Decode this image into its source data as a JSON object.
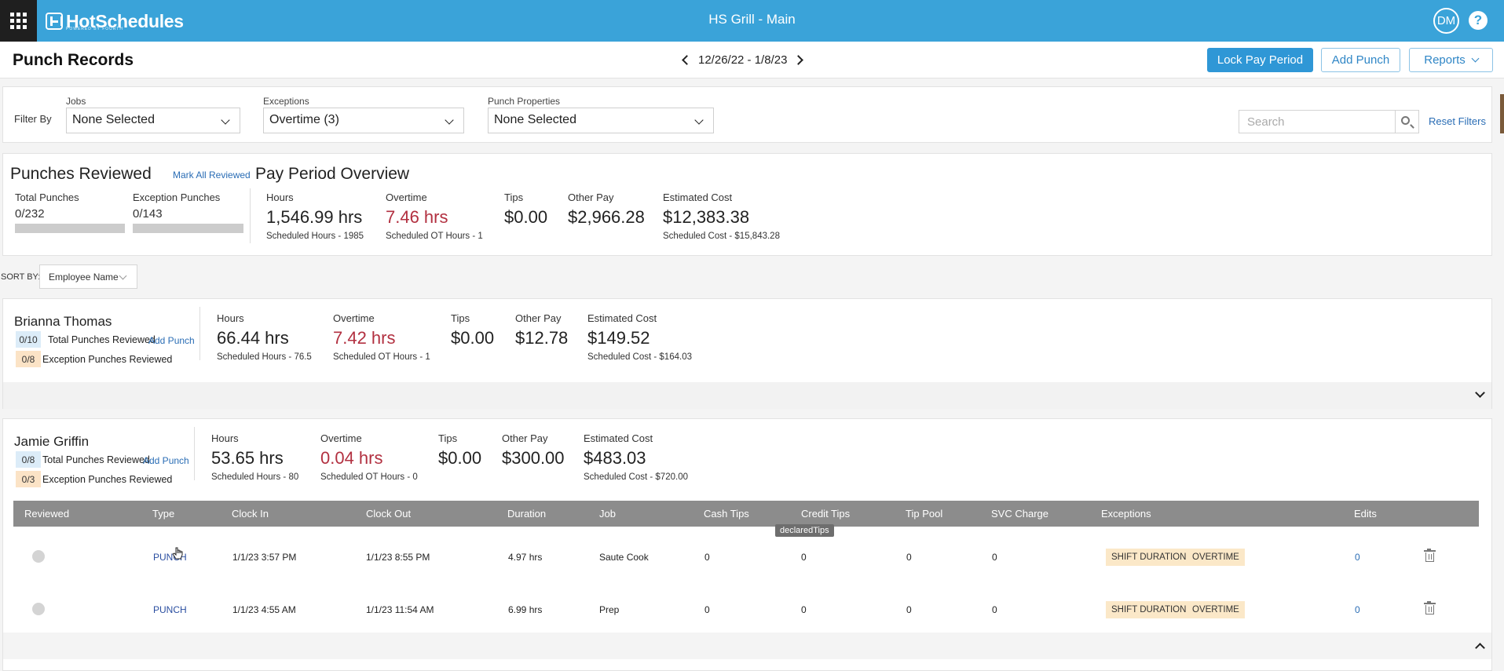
{
  "topbar": {
    "logo_text": "HotSchedules",
    "logo_sub": "POWERED BY FOURTH",
    "location": "HS Grill - Main",
    "avatar": "DM",
    "help": "?",
    "color": "#3aa3d9"
  },
  "header": {
    "title": "Punch Records",
    "date_range": "12/26/22 - 1/8/23",
    "lock_label": "Lock Pay Period",
    "add_punch_label": "Add Punch",
    "reports_label": "Reports"
  },
  "filters": {
    "filter_by": "Filter By",
    "jobs_label": "Jobs",
    "jobs_value": "None Selected",
    "exceptions_label": "Exceptions",
    "exceptions_value": "Overtime (3)",
    "props_label": "Punch Properties",
    "props_value": "None Selected",
    "search_placeholder": "Search",
    "reset_label": "Reset Filters"
  },
  "overview": {
    "reviewed_title": "Punches Reviewed",
    "mark_all": "Mark All Reviewed",
    "total_label": "Total Punches",
    "total_value": "0/232",
    "total_progress": 0,
    "exception_label": "Exception Punches",
    "exception_value": "0/143",
    "exception_progress": 0,
    "ppo_title": "Pay Period Overview",
    "hours_label": "Hours",
    "hours_value": "1,546.99 hrs",
    "hours_sub": "Scheduled Hours - 1985",
    "ot_label": "Overtime",
    "ot_value": "7.46 hrs",
    "ot_sub": "Scheduled OT Hours - 1",
    "tips_label": "Tips",
    "tips_value": "$0.00",
    "other_label": "Other Pay",
    "other_value": "$2,966.28",
    "cost_label": "Estimated Cost",
    "cost_value": "$12,383.38",
    "cost_sub": "Scheduled Cost - $15,843.28"
  },
  "sort": {
    "label": "SORT BY:",
    "value": "Employee Name"
  },
  "employees": [
    {
      "name": "Brianna Thomas",
      "total_badge": "0/10",
      "total_text": "Total Punches Reviewed",
      "add_punch": "Add Punch",
      "exc_badge": "0/8",
      "exc_text": "Exception Punches Reviewed",
      "hours_label": "Hours",
      "hours_value": "66.44 hrs",
      "hours_sub": "Scheduled Hours - 76.5",
      "ot_label": "Overtime",
      "ot_value": "7.42 hrs",
      "ot_sub": "Scheduled OT Hours - 1",
      "tips_label": "Tips",
      "tips_value": "$0.00",
      "other_label": "Other Pay",
      "other_value": "$12.78",
      "cost_label": "Estimated Cost",
      "cost_value": "$149.52",
      "cost_sub": "Scheduled Cost - $164.03"
    },
    {
      "name": "Jamie Griffin",
      "total_badge": "0/8",
      "total_text": "Total Punches Reviewed",
      "add_punch": "Add Punch",
      "exc_badge": "0/3",
      "exc_text": "Exception Punches Reviewed",
      "hours_label": "Hours",
      "hours_value": "53.65 hrs",
      "hours_sub": "Scheduled Hours - 80",
      "ot_label": "Overtime",
      "ot_value": "0.04 hrs",
      "ot_sub": "Scheduled OT Hours - 0",
      "tips_label": "Tips",
      "tips_value": "$0.00",
      "other_label": "Other Pay",
      "other_value": "$300.00",
      "cost_label": "Estimated Cost",
      "cost_value": "$483.03",
      "cost_sub": "Scheduled Cost - $720.00"
    }
  ],
  "table": {
    "headers": [
      "Reviewed",
      "Type",
      "Clock In",
      "Clock Out",
      "Duration",
      "Job",
      "Cash Tips",
      "Credit Tips",
      "Tip Pool",
      "SVC Charge",
      "Exceptions",
      "Edits"
    ],
    "tooltip": "declaredTips",
    "rows": [
      {
        "type": "PUNCH",
        "clock_in": "1/1/23  3:57 PM",
        "clock_out": "1/1/23  8:55 PM",
        "duration": "4.97 hrs",
        "job": "Saute Cook",
        "cash_tips": "0",
        "credit_tips": "0",
        "tip_pool": "0",
        "svc": "0",
        "exc1": "SHIFT DURATION",
        "exc2": "OVERTIME",
        "edits": "0"
      },
      {
        "type": "PUNCH",
        "clock_in": "1/1/23  4:55 AM",
        "clock_out": "1/1/23  11:54 AM",
        "duration": "6.99 hrs",
        "job": "Prep",
        "cash_tips": "0",
        "credit_tips": "0",
        "tip_pool": "0",
        "svc": "0",
        "exc1": "SHIFT DURATION",
        "exc2": "OVERTIME",
        "edits": "0"
      }
    ]
  }
}
